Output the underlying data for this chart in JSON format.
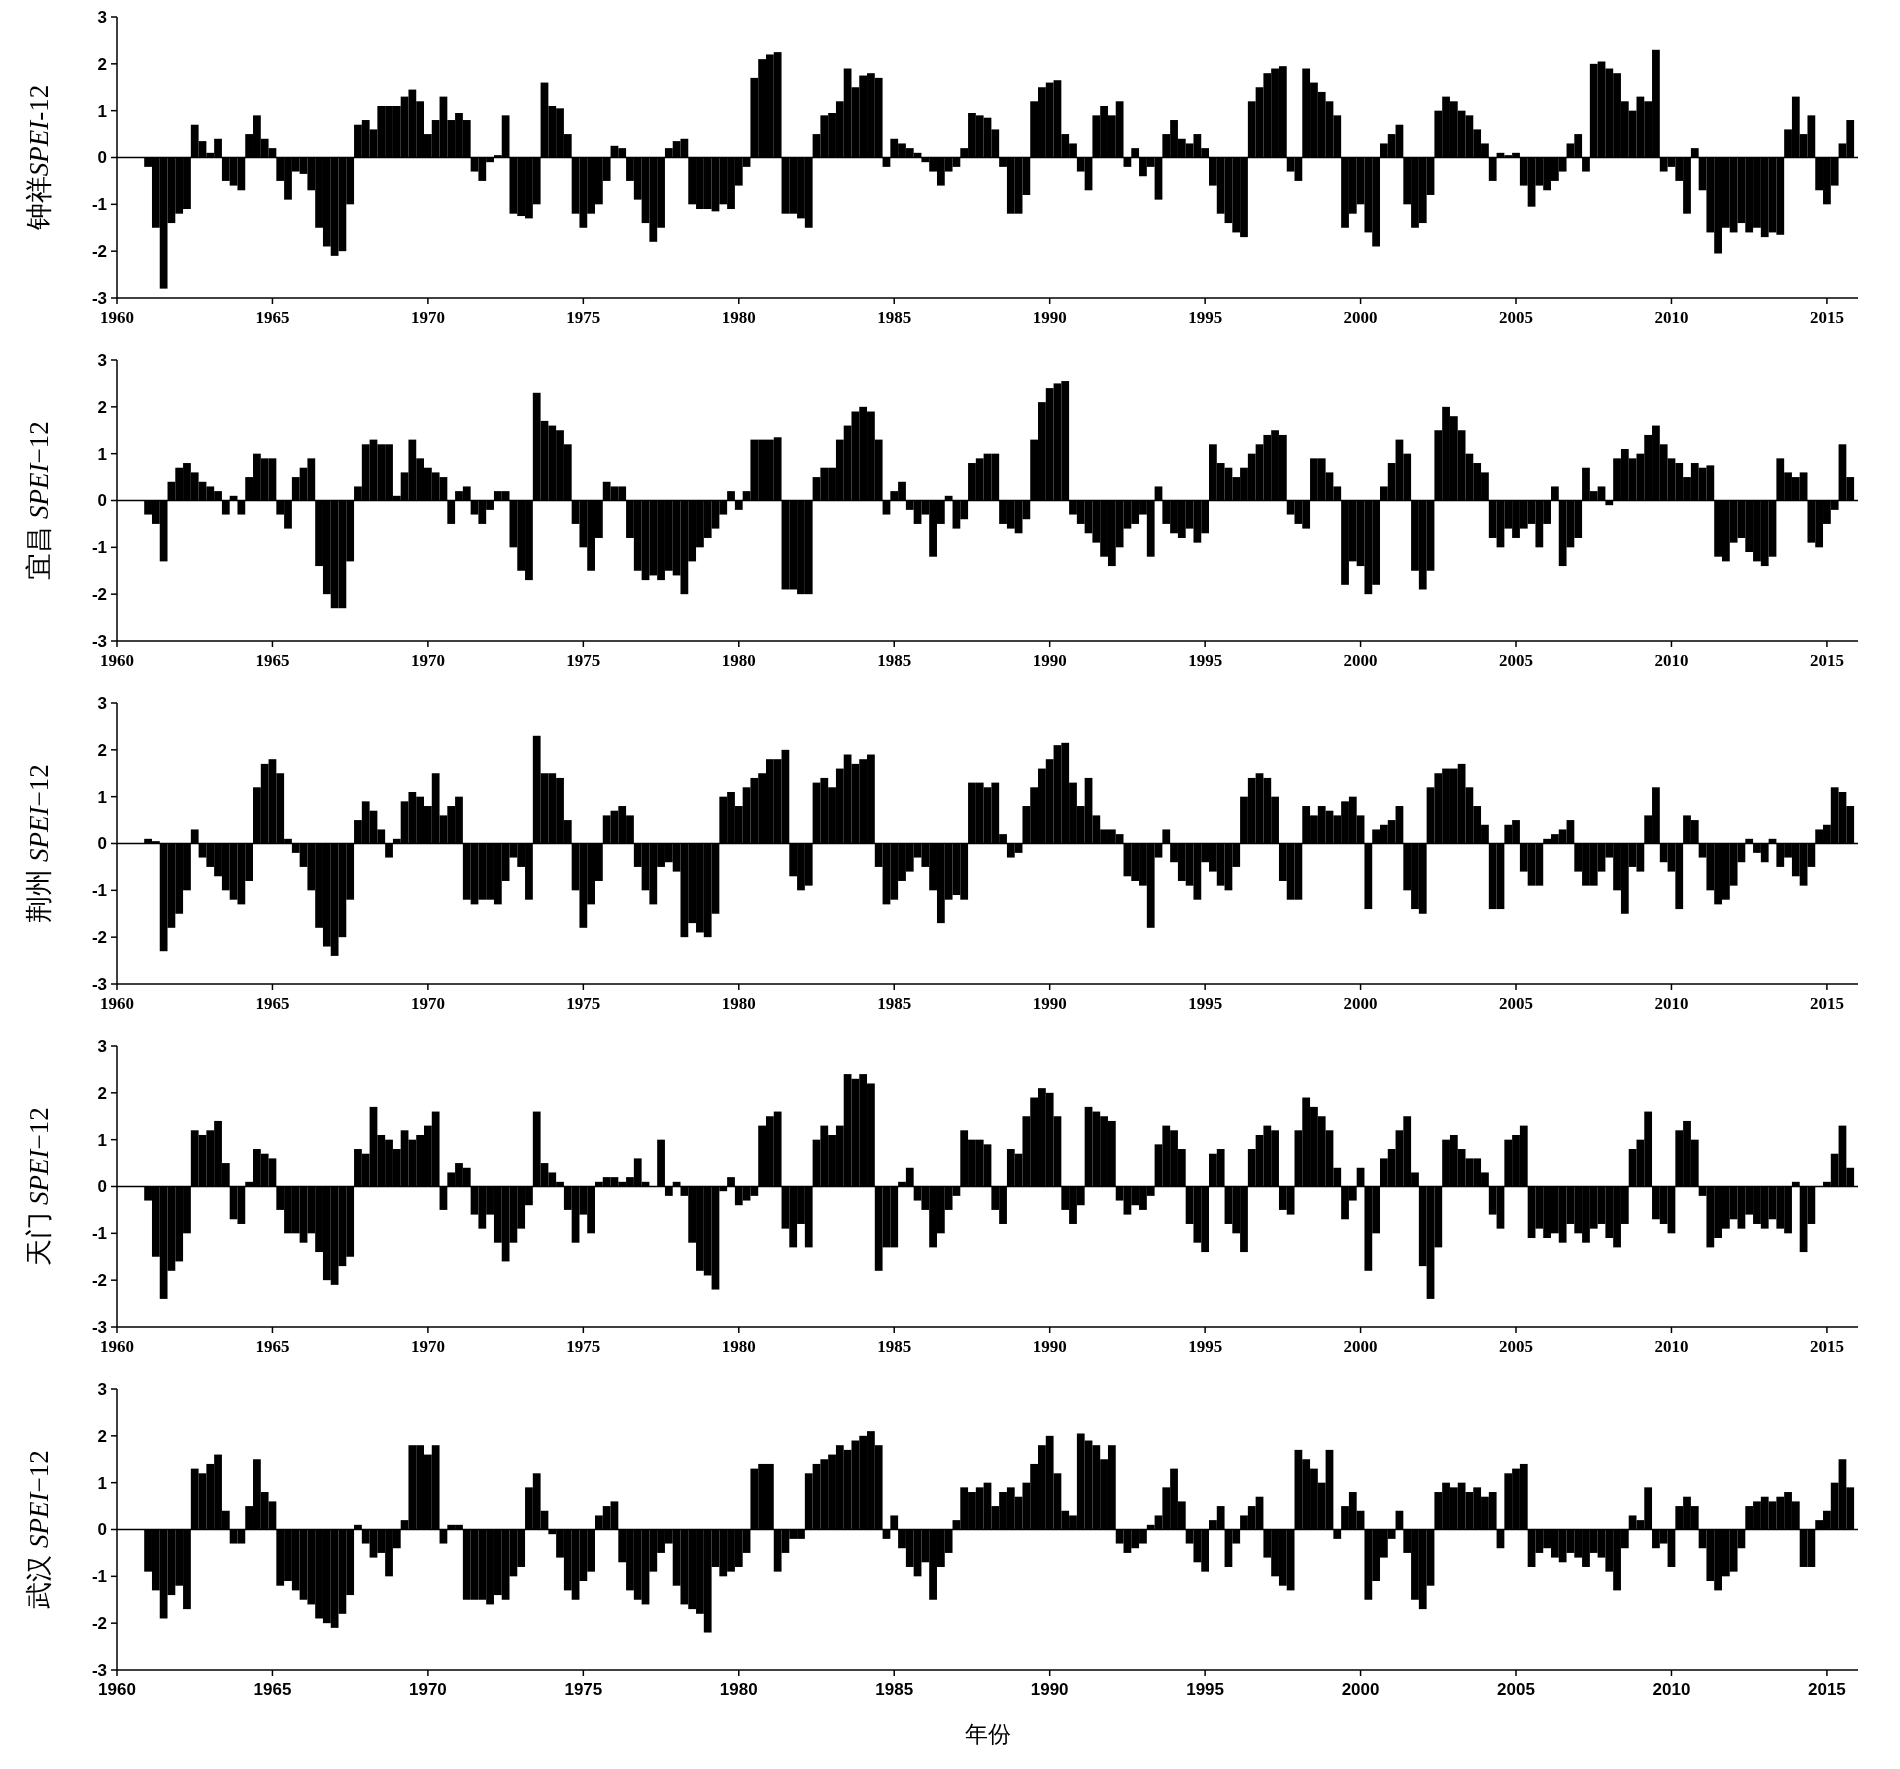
{
  "chart_data": [
    {
      "type": "bar",
      "ylabel": "钟祥SPEI-12",
      "color": "#000000",
      "xlim": [
        1960,
        2016
      ],
      "xticks": [
        1960,
        1965,
        1970,
        1975,
        1980,
        1985,
        1990,
        1995,
        2000,
        2005,
        2010,
        2015
      ],
      "ylim": [
        -3,
        3
      ],
      "yticks": [
        -3,
        -2,
        -1,
        0,
        1,
        2,
        3
      ],
      "x": [
        1961,
        1961.25,
        1961.5,
        1961.75,
        1962,
        1962.25,
        1962.5,
        1962.75,
        1963,
        1963.25,
        1963.5,
        1963.75,
        1964,
        1964.25,
        1964.5,
        1964.75,
        1965,
        1965.25,
        1965.5,
        1965.75,
        1966,
        1966.25,
        1966.5,
        1966.75,
        1967,
        1967.25,
        1967.5,
        1967.75,
        1968,
        1968.25,
        1968.5,
        1968.75,
        1969,
        1969.25,
        1969.5,
        1969.75,
        1970,
        1970.25,
        1970.5,
        1970.75,
        1971,
        1971.25,
        1971.5,
        1971.75,
        1972,
        1972.25,
        1972.5,
        1972.75,
        1973,
        1973.25,
        1973.5,
        1973.75,
        1974,
        1974.25,
        1974.5,
        1974.75,
        1975,
        1975.25,
        1975.5,
        1975.75,
        1976,
        1976.25,
        1976.5,
        1976.75,
        1977,
        1977.25,
        1977.5,
        1977.75,
        1978,
        1978.25,
        1978.5,
        1978.75,
        1979,
        1979.25,
        1979.5,
        1979.75,
        1980,
        1980.25,
        1980.5,
        1980.75,
        1981,
        1981.25,
        1981.5,
        1981.75,
        1982,
        1982.25,
        1982.5,
        1982.75,
        1983,
        1983.25,
        1983.5,
        1983.75,
        1984,
        1984.25,
        1984.5,
        1984.75,
        1985,
        1985.25,
        1985.5,
        1985.75,
        1986,
        1986.25,
        1986.5,
        1986.75,
        1987,
        1987.25,
        1987.5,
        1987.75,
        1988,
        1988.25,
        1988.5,
        1988.75,
        1989,
        1989.25,
        1989.5,
        1989.75,
        1990,
        1990.25,
        1990.5,
        1990.75,
        1991,
        1991.25,
        1991.5,
        1991.75,
        1992,
        1992.25,
        1992.5,
        1992.75,
        1993,
        1993.25,
        1993.5,
        1993.75,
        1994,
        1994.25,
        1994.5,
        1994.75,
        1995,
        1995.25,
        1995.5,
        1995.75,
        1996,
        1996.25,
        1996.5,
        1996.75,
        1997,
        1997.25,
        1997.5,
        1997.75,
        1998,
        1998.25,
        1998.5,
        1998.75,
        1999,
        1999.25,
        1999.5,
        1999.75,
        2000,
        2000.25,
        2000.5,
        2000.75,
        2001,
        2001.25,
        2001.5,
        2001.75,
        2002,
        2002.25,
        2002.5,
        2002.75,
        2003,
        2003.25,
        2003.5,
        2003.75,
        2004,
        2004.25,
        2004.5,
        2004.75,
        2005,
        2005.25,
        2005.5,
        2005.75,
        2006,
        2006.25,
        2006.5,
        2006.75,
        2007,
        2007.25,
        2007.5,
        2007.75,
        2008,
        2008.25,
        2008.5,
        2008.75,
        2009,
        2009.25,
        2009.5,
        2009.75,
        2010,
        2010.25,
        2010.5,
        2010.75,
        2011,
        2011.25,
        2011.5,
        2011.75,
        2012,
        2012.25,
        2012.5,
        2012.75,
        2013,
        2013.25,
        2013.5,
        2013.75,
        2014,
        2014.25,
        2014.5,
        2014.75,
        2015,
        2015.25,
        2015.5,
        2015.75
      ],
      "values": [
        -0.2,
        -1.5,
        -2.8,
        -1.4,
        -1.2,
        -1.1,
        0.7,
        0.35,
        0.1,
        0.4,
        -0.5,
        -0.6,
        -0.7,
        0.5,
        0.9,
        0.4,
        0.2,
        -0.5,
        -0.9,
        -0.3,
        -0.35,
        -0.7,
        -1.5,
        -1.9,
        -2.1,
        -2,
        -1,
        0.7,
        0.8,
        0.6,
        1.1,
        1.1,
        1.1,
        1.3,
        1.45,
        1.2,
        0.5,
        0.8,
        1.3,
        0.8,
        0.95,
        0.8,
        -0.3,
        -0.5,
        -0.1,
        0.05,
        0.9,
        -1.2,
        -1.25,
        -1.3,
        -1,
        1.6,
        1.1,
        1.05,
        0.5,
        -1.2,
        -1.5,
        -1.2,
        -1,
        -0.5,
        0.25,
        0.2,
        -0.5,
        -0.9,
        -1.4,
        -1.8,
        -1.5,
        0.2,
        0.35,
        0.4,
        -1,
        -1.1,
        -1.1,
        -1.15,
        -1,
        -1.1,
        -0.6,
        -0.2,
        1.7,
        2.1,
        2.2,
        2.25,
        -1.2,
        -1.2,
        -1.3,
        -1.5,
        0.5,
        0.9,
        0.95,
        1.2,
        1.9,
        1.5,
        1.75,
        1.8,
        1.7,
        -0.2,
        0.4,
        0.3,
        0.2,
        0.1,
        -0.1,
        -0.3,
        -0.6,
        -0.3,
        -0.2,
        0.2,
        0.95,
        0.9,
        0.85,
        0.6,
        -0.2,
        -1.2,
        -1.2,
        -0.8,
        1.2,
        1.5,
        1.6,
        1.65,
        0.5,
        0.3,
        -0.3,
        -0.7,
        0.9,
        1.1,
        0.9,
        1.2,
        -0.2,
        0.2,
        -0.4,
        -0.2,
        -0.9,
        0.5,
        0.8,
        0.4,
        0.3,
        0.5,
        0.2,
        -0.6,
        -1.2,
        -1.4,
        -1.6,
        -1.7,
        1.2,
        1.5,
        1.8,
        1.9,
        1.95,
        -0.3,
        -0.5,
        1.9,
        1.6,
        1.4,
        1.2,
        0.9,
        -1.5,
        -1.2,
        -1,
        -1.6,
        -1.9,
        0.3,
        0.5,
        0.7,
        -1,
        -1.5,
        -1.4,
        -0.8,
        1,
        1.3,
        1.2,
        1,
        0.9,
        0.6,
        0.3,
        -0.5,
        0.1,
        0.05,
        0.1,
        -0.6,
        -1.05,
        -0.6,
        -0.7,
        -0.5,
        -0.3,
        0.3,
        0.5,
        -0.3,
        2,
        2.05,
        1.9,
        1.8,
        1.2,
        1,
        1.3,
        1.2,
        2.3,
        -0.3,
        -0.2,
        -0.5,
        -1.2,
        0.2,
        -0.7,
        -1.6,
        -2.05,
        -1.5,
        -1.6,
        -1.4,
        -1.6,
        -1.5,
        -1.7,
        -1.6,
        -1.65,
        0.6,
        1.3,
        0.5,
        0.9,
        -0.7,
        -1,
        -0.6,
        0.3,
        0.8
      ]
    },
    {
      "type": "bar",
      "ylabel": "宜昌 SPEI−12",
      "color": "#000000",
      "xlim": [
        1960,
        2016
      ],
      "xticks": [
        1960,
        1965,
        1970,
        1975,
        1980,
        1985,
        1990,
        1995,
        2000,
        2005,
        2010,
        2015
      ],
      "ylim": [
        -3,
        3
      ],
      "yticks": [
        -3,
        -2,
        -1,
        0,
        1,
        2,
        3
      ],
      "x": [
        1961,
        1961.25,
        1961.5,
        1961.75,
        1962,
        1962.25,
        1962.5,
        1962.75,
        1963,
        1963.25,
        1963.5,
        1963.75,
        1964,
        1964.25,
        1964.5,
        1964.75,
        1965,
        1965.25,
        1965.5,
        1965.75,
        1966,
        1966.25,
        1966.5,
        1966.75,
        1967,
        1967.25,
        1967.5,
        1967.75,
        1968,
        1968.25,
        1968.5,
        1968.75,
        1969,
        1969.25,
        1969.5,
        1969.75,
        1970,
        1970.25,
        1970.5,
        1970.75,
        1971,
        1971.25,
        1971.5,
        1971.75,
        1972,
        1972.25,
        1972.5,
        1972.75,
        1973,
        1973.25,
        1973.5,
        1973.75,
        1974,
        1974.25,
        1974.5,
        1974.75,
        1975,
        1975.25,
        1975.5,
        1975.75,
        1976,
        1976.25,
        1976.5,
        1976.75,
        1977,
        1977.25,
        1977.5,
        1977.75,
        1978,
        1978.25,
        1978.5,
        1978.75,
        1979,
        1979.25,
        1979.5,
        1979.75,
        1980,
        1980.25,
        1980.5,
        1980.75,
        1981,
        1981.25,
        1981.5,
        1981.75,
        1982,
        1982.25,
        1982.5,
        1982.75,
        1983,
        1983.25,
        1983.5,
        1983.75,
        1984,
        1984.25,
        1984.5,
        1984.75,
        1985,
        1985.25,
        1985.5,
        1985.75,
        1986,
        1986.25,
        1986.5,
        1986.75,
        1987,
        1987.25,
        1987.5,
        1987.75,
        1988,
        1988.25,
        1988.5,
        1988.75,
        1989,
        1989.25,
        1989.5,
        1989.75,
        1990,
        1990.25,
        1990.5,
        1990.75,
        1991,
        1991.25,
        1991.5,
        1991.75,
        1992,
        1992.25,
        1992.5,
        1992.75,
        1993,
        1993.25,
        1993.5,
        1993.75,
        1994,
        1994.25,
        1994.5,
        1994.75,
        1995,
        1995.25,
        1995.5,
        1995.75,
        1996,
        1996.25,
        1996.5,
        1996.75,
        1997,
        1997.25,
        1997.5,
        1997.75,
        1998,
        1998.25,
        1998.5,
        1998.75,
        1999,
        1999.25,
        1999.5,
        1999.75,
        2000,
        2000.25,
        2000.5,
        2000.75,
        2001,
        2001.25,
        2001.5,
        2001.75,
        2002,
        2002.25,
        2002.5,
        2002.75,
        2003,
        2003.25,
        2003.5,
        2003.75,
        2004,
        2004.25,
        2004.5,
        2004.75,
        2005,
        2005.25,
        2005.5,
        2005.75,
        2006,
        2006.25,
        2006.5,
        2006.75,
        2007,
        2007.25,
        2007.5,
        2007.75,
        2008,
        2008.25,
        2008.5,
        2008.75,
        2009,
        2009.25,
        2009.5,
        2009.75,
        2010,
        2010.25,
        2010.5,
        2010.75,
        2011,
        2011.25,
        2011.5,
        2011.75,
        2012,
        2012.25,
        2012.5,
        2012.75,
        2013,
        2013.25,
        2013.5,
        2013.75,
        2014,
        2014.25,
        2014.5,
        2014.75,
        2015,
        2015.25,
        2015.5,
        2015.75
      ],
      "values": [
        -0.3,
        -0.5,
        -1.3,
        0.4,
        0.7,
        0.8,
        0.6,
        0.4,
        0.3,
        0.2,
        -0.3,
        0.1,
        -0.3,
        0.5,
        1,
        0.9,
        0.9,
        -0.3,
        -0.6,
        0.5,
        0.7,
        0.9,
        -1.4,
        -2,
        -2.3,
        -2.3,
        -1.3,
        0.3,
        1.2,
        1.3,
        1.2,
        1.2,
        0.1,
        0.6,
        1.3,
        0.9,
        0.7,
        0.6,
        0.5,
        -0.5,
        0.2,
        0.3,
        -0.3,
        -0.5,
        -0.2,
        0.2,
        0.2,
        -1,
        -1.5,
        -1.7,
        2.3,
        1.7,
        1.6,
        1.5,
        1.2,
        -0.5,
        -1,
        -1.5,
        -0.8,
        0.4,
        0.3,
        0.3,
        -0.8,
        -1.5,
        -1.7,
        -1.6,
        -1.7,
        -1.5,
        -1.6,
        -2,
        -1.3,
        -1,
        -0.8,
        -0.6,
        -0.3,
        0.2,
        -0.2,
        0.2,
        1.3,
        1.3,
        1.3,
        1.35,
        -1.9,
        -1.9,
        -2,
        -2,
        0.5,
        0.7,
        0.7,
        1.3,
        1.6,
        1.9,
        2,
        1.9,
        1.3,
        -0.3,
        0.2,
        0.4,
        -0.2,
        -0.5,
        -0.3,
        -1.2,
        -0.5,
        0.1,
        -0.6,
        -0.4,
        0.8,
        0.9,
        1,
        1,
        -0.5,
        -0.6,
        -0.7,
        -0.4,
        1.3,
        2.1,
        2.4,
        2.5,
        2.55,
        -0.3,
        -0.5,
        -0.7,
        -0.9,
        -1.2,
        -1.4,
        -1,
        -0.6,
        -0.5,
        -0.3,
        -1.2,
        0.3,
        -0.5,
        -0.7,
        -0.8,
        -0.6,
        -0.9,
        -0.7,
        1.2,
        0.8,
        0.7,
        0.5,
        0.7,
        1,
        1.2,
        1.4,
        1.5,
        1.4,
        -0.3,
        -0.5,
        -0.6,
        0.9,
        0.9,
        0.6,
        0.3,
        -1.8,
        -1.3,
        -1.4,
        -2,
        -1.8,
        0.3,
        0.8,
        1.3,
        1,
        -1.5,
        -1.9,
        -1.5,
        1.5,
        2,
        1.8,
        1.5,
        1,
        0.8,
        0.6,
        -0.8,
        -1,
        -0.6,
        -0.8,
        -0.6,
        -0.5,
        -1,
        -0.5,
        0.3,
        -1.4,
        -1,
        -0.8,
        0.7,
        0.2,
        0.3,
        -0.1,
        0.9,
        1.1,
        0.9,
        1,
        1.4,
        1.6,
        1.2,
        0.9,
        0.8,
        0.5,
        0.8,
        0.7,
        0.75,
        -1.2,
        -1.3,
        -0.9,
        -0.8,
        -1.1,
        -1.3,
        -1.4,
        -1.2,
        0.9,
        0.6,
        0.5,
        0.6,
        -0.9,
        -1,
        -0.5,
        -0.2,
        1.2,
        0.5
      ]
    },
    {
      "type": "bar",
      "ylabel": "荆州 SPEI−12",
      "color": "#000000",
      "xlim": [
        1960,
        2016
      ],
      "xticks": [
        1960,
        1965,
        1970,
        1975,
        1980,
        1985,
        1990,
        1995,
        2000,
        2005,
        2010,
        2015
      ],
      "ylim": [
        -3,
        3
      ],
      "yticks": [
        -3,
        -2,
        -1,
        0,
        1,
        2,
        3
      ],
      "x": [
        1961,
        1961.25,
        1961.5,
        1961.75,
        1962,
        1962.25,
        1962.5,
        1962.75,
        1963,
        1963.25,
        1963.5,
        1963.75,
        1964,
        1964.25,
        1964.5,
        1964.75,
        1965,
        1965.25,
        1965.5,
        1965.75,
        1966,
        1966.25,
        1966.5,
        1966.75,
        1967,
        1967.25,
        1967.5,
        1967.75,
        1968,
        1968.25,
        1968.5,
        1968.75,
        1969,
        1969.25,
        1969.5,
        1969.75,
        1970,
        1970.25,
        1970.5,
        1970.75,
        1971,
        1971.25,
        1971.5,
        1971.75,
        1972,
        1972.25,
        1972.5,
        1972.75,
        1973,
        1973.25,
        1973.5,
        1973.75,
        1974,
        1974.25,
        1974.5,
        1974.75,
        1975,
        1975.25,
        1975.5,
        1975.75,
        1976,
        1976.25,
        1976.5,
        1976.75,
        1977,
        1977.25,
        1977.5,
        1977.75,
        1978,
        1978.25,
        1978.5,
        1978.75,
        1979,
        1979.25,
        1979.5,
        1979.75,
        1980,
        1980.25,
        1980.5,
        1980.75,
        1981,
        1981.25,
        1981.5,
        1981.75,
        1982,
        1982.25,
        1982.5,
        1982.75,
        1983,
        1983.25,
        1983.5,
        1983.75,
        1984,
        1984.25,
        1984.5,
        1984.75,
        1985,
        1985.25,
        1985.5,
        1985.75,
        1986,
        1986.25,
        1986.5,
        1986.75,
        1987,
        1987.25,
        1987.5,
        1987.75,
        1988,
        1988.25,
        1988.5,
        1988.75,
        1989,
        1989.25,
        1989.5,
        1989.75,
        1990,
        1990.25,
        1990.5,
        1990.75,
        1991,
        1991.25,
        1991.5,
        1991.75,
        1992,
        1992.25,
        1992.5,
        1992.75,
        1993,
        1993.25,
        1993.5,
        1993.75,
        1994,
        1994.25,
        1994.5,
        1994.75,
        1995,
        1995.25,
        1995.5,
        1995.75,
        1996,
        1996.25,
        1996.5,
        1996.75,
        1997,
        1997.25,
        1997.5,
        1997.75,
        1998,
        1998.25,
        1998.5,
        1998.75,
        1999,
        1999.25,
        1999.5,
        1999.75,
        2000,
        2000.25,
        2000.5,
        2000.75,
        2001,
        2001.25,
        2001.5,
        2001.75,
        2002,
        2002.25,
        2002.5,
        2002.75,
        2003,
        2003.25,
        2003.5,
        2003.75,
        2004,
        2004.25,
        2004.5,
        2004.75,
        2005,
        2005.25,
        2005.5,
        2005.75,
        2006,
        2006.25,
        2006.5,
        2006.75,
        2007,
        2007.25,
        2007.5,
        2007.75,
        2008,
        2008.25,
        2008.5,
        2008.75,
        2009,
        2009.25,
        2009.5,
        2009.75,
        2010,
        2010.25,
        2010.5,
        2010.75,
        2011,
        2011.25,
        2011.5,
        2011.75,
        2012,
        2012.25,
        2012.5,
        2012.75,
        2013,
        2013.25,
        2013.5,
        2013.75,
        2014,
        2014.25,
        2014.5,
        2014.75,
        2015,
        2015.25,
        2015.5,
        2015.75
      ],
      "values": [
        0.1,
        0.05,
        -2.3,
        -1.8,
        -1.5,
        -1,
        0.3,
        -0.3,
        -0.5,
        -0.7,
        -1,
        -1.2,
        -1.3,
        -0.8,
        1.2,
        1.7,
        1.8,
        1.5,
        0.1,
        -0.2,
        -0.5,
        -1,
        -1.8,
        -2.2,
        -2.4,
        -2,
        -1.2,
        0.5,
        0.9,
        0.7,
        0.3,
        -0.3,
        0.1,
        0.9,
        1.1,
        1,
        0.8,
        1.5,
        0.6,
        0.8,
        1,
        -1.2,
        -1.3,
        -1.2,
        -1.2,
        -1.3,
        -0.8,
        -0.3,
        -0.5,
        -1.2,
        2.3,
        1.5,
        1.5,
        1.4,
        0.5,
        -1,
        -1.8,
        -1.3,
        -0.8,
        0.6,
        0.7,
        0.8,
        0.6,
        -0.5,
        -1,
        -1.3,
        -0.5,
        -0.4,
        -0.6,
        -2,
        -1.7,
        -1.9,
        -2,
        -1.5,
        1,
        1.1,
        0.8,
        1.2,
        1.4,
        1.5,
        1.8,
        1.8,
        2,
        -0.7,
        -1,
        -0.9,
        1.3,
        1.4,
        1.2,
        1.6,
        1.9,
        1.7,
        1.8,
        1.9,
        -0.5,
        -1.3,
        -1.2,
        -0.8,
        -0.6,
        -0.3,
        -0.5,
        -1,
        -1.7,
        -1.2,
        -1.1,
        -1.2,
        1.3,
        1.3,
        1.2,
        1.3,
        0.2,
        -0.3,
        -0.2,
        0.8,
        1.2,
        1.6,
        1.8,
        2.1,
        2.15,
        1.3,
        0.8,
        1.4,
        0.6,
        0.3,
        0.3,
        0.2,
        -0.7,
        -0.8,
        -0.9,
        -1.8,
        -0.3,
        0.3,
        -0.4,
        -0.8,
        -0.9,
        -1.2,
        -0.4,
        -0.6,
        -0.9,
        -1,
        -0.5,
        1,
        1.4,
        1.5,
        1.4,
        1,
        -0.8,
        -1.2,
        -1.2,
        0.8,
        0.6,
        0.8,
        0.7,
        0.6,
        0.9,
        1,
        0.6,
        -1.4,
        0.3,
        0.4,
        0.5,
        0.8,
        -1,
        -1.4,
        -1.5,
        1.2,
        1.5,
        1.6,
        1.6,
        1.7,
        1.2,
        0.8,
        0.4,
        -1.4,
        -1.4,
        0.4,
        0.5,
        -0.6,
        -0.9,
        -0.9,
        0.1,
        0.2,
        0.3,
        0.5,
        -0.6,
        -0.9,
        -0.9,
        -0.6,
        -0.3,
        -1,
        -1.5,
        -0.5,
        -0.6,
        0.6,
        1.2,
        -0.4,
        -0.6,
        -1.4,
        0.6,
        0.5,
        -0.3,
        -1,
        -1.3,
        -1.2,
        -0.9,
        -0.4,
        0.1,
        -0.2,
        -0.4,
        0.1,
        -0.5,
        -0.3,
        -0.7,
        -0.9,
        -0.5,
        0.3,
        0.4,
        1.2,
        1.1,
        0.8
      ]
    },
    {
      "type": "bar",
      "ylabel": "天门 SPEI−12",
      "color": "#000000",
      "xlim": [
        1960,
        2016
      ],
      "xticks": [
        1960,
        1965,
        1970,
        1975,
        1980,
        1985,
        1990,
        1995,
        2000,
        2005,
        2010,
        2015
      ],
      "ylim": [
        -3,
        3
      ],
      "yticks": [
        -3,
        -2,
        -1,
        0,
        1,
        2,
        3
      ],
      "x": [
        1961,
        1961.25,
        1961.5,
        1961.75,
        1962,
        1962.25,
        1962.5,
        1962.75,
        1963,
        1963.25,
        1963.5,
        1963.75,
        1964,
        1964.25,
        1964.5,
        1964.75,
        1965,
        1965.25,
        1965.5,
        1965.75,
        1966,
        1966.25,
        1966.5,
        1966.75,
        1967,
        1967.25,
        1967.5,
        1967.75,
        1968,
        1968.25,
        1968.5,
        1968.75,
        1969,
        1969.25,
        1969.5,
        1969.75,
        1970,
        1970.25,
        1970.5,
        1970.75,
        1971,
        1971.25,
        1971.5,
        1971.75,
        1972,
        1972.25,
        1972.5,
        1972.75,
        1973,
        1973.25,
        1973.5,
        1973.75,
        1974,
        1974.25,
        1974.5,
        1974.75,
        1975,
        1975.25,
        1975.5,
        1975.75,
        1976,
        1976.25,
        1976.5,
        1976.75,
        1977,
        1977.25,
        1977.5,
        1977.75,
        1978,
        1978.25,
        1978.5,
        1978.75,
        1979,
        1979.25,
        1979.5,
        1979.75,
        1980,
        1980.25,
        1980.5,
        1980.75,
        1981,
        1981.25,
        1981.5,
        1981.75,
        1982,
        1982.25,
        1982.5,
        1982.75,
        1983,
        1983.25,
        1983.5,
        1983.75,
        1984,
        1984.25,
        1984.5,
        1984.75,
        1985,
        1985.25,
        1985.5,
        1985.75,
        1986,
        1986.25,
        1986.5,
        1986.75,
        1987,
        1987.25,
        1987.5,
        1987.75,
        1988,
        1988.25,
        1988.5,
        1988.75,
        1989,
        1989.25,
        1989.5,
        1989.75,
        1990,
        1990.25,
        1990.5,
        1990.75,
        1991,
        1991.25,
        1991.5,
        1991.75,
        1992,
        1992.25,
        1992.5,
        1992.75,
        1993,
        1993.25,
        1993.5,
        1993.75,
        1994,
        1994.25,
        1994.5,
        1994.75,
        1995,
        1995.25,
        1995.5,
        1995.75,
        1996,
        1996.25,
        1996.5,
        1996.75,
        1997,
        1997.25,
        1997.5,
        1997.75,
        1998,
        1998.25,
        1998.5,
        1998.75,
        1999,
        1999.25,
        1999.5,
        1999.75,
        2000,
        2000.25,
        2000.5,
        2000.75,
        2001,
        2001.25,
        2001.5,
        2001.75,
        2002,
        2002.25,
        2002.5,
        2002.75,
        2003,
        2003.25,
        2003.5,
        2003.75,
        2004,
        2004.25,
        2004.5,
        2004.75,
        2005,
        2005.25,
        2005.5,
        2005.75,
        2006,
        2006.25,
        2006.5,
        2006.75,
        2007,
        2007.25,
        2007.5,
        2007.75,
        2008,
        2008.25,
        2008.5,
        2008.75,
        2009,
        2009.25,
        2009.5,
        2009.75,
        2010,
        2010.25,
        2010.5,
        2010.75,
        2011,
        2011.25,
        2011.5,
        2011.75,
        2012,
        2012.25,
        2012.5,
        2012.75,
        2013,
        2013.25,
        2013.5,
        2013.75,
        2014,
        2014.25,
        2014.5,
        2014.75,
        2015,
        2015.25,
        2015.5,
        2015.75
      ],
      "values": [
        -0.3,
        -1.5,
        -2.4,
        -1.8,
        -1.6,
        -1,
        1.2,
        1.1,
        1.2,
        1.4,
        0.5,
        -0.7,
        -0.8,
        0.1,
        0.8,
        0.7,
        0.6,
        -0.5,
        -1,
        -1,
        -1.2,
        -1,
        -1.4,
        -2,
        -2.1,
        -1.7,
        -1.5,
        0.8,
        0.7,
        1.7,
        1.1,
        1,
        0.8,
        1.2,
        1,
        1.1,
        1.3,
        1.6,
        -0.5,
        0.3,
        0.5,
        0.4,
        -0.6,
        -0.9,
        -0.6,
        -1.2,
        -1.6,
        -1.2,
        -0.9,
        -0.4,
        1.6,
        0.5,
        0.3,
        0.1,
        -0.5,
        -1.2,
        -0.6,
        -1,
        0.1,
        0.2,
        0.2,
        0.1,
        0.2,
        0.6,
        0.1,
        0,
        1,
        -0.2,
        0.1,
        -0.2,
        -1.2,
        -1.8,
        -1.9,
        -2.2,
        -0.1,
        0.2,
        -0.4,
        -0.3,
        -0.2,
        1.3,
        1.5,
        1.6,
        -0.9,
        -1.3,
        -0.8,
        -1.3,
        1,
        1.3,
        1.1,
        1.3,
        2.4,
        2.3,
        2.4,
        2.2,
        -1.8,
        -1.3,
        -1.3,
        0.1,
        0.4,
        -0.3,
        -0.5,
        -1.3,
        -1,
        -0.5,
        -0.2,
        1.2,
        1,
        1,
        0.9,
        -0.5,
        -0.8,
        0.8,
        0.7,
        1.5,
        1.9,
        2.1,
        2,
        1.5,
        -0.5,
        -0.8,
        -0.4,
        1.7,
        1.6,
        1.5,
        1.4,
        -0.3,
        -0.6,
        -0.4,
        -0.5,
        -0.2,
        0.9,
        1.3,
        1.2,
        0.8,
        -0.8,
        -1.2,
        -1.4,
        0.7,
        0.8,
        -0.8,
        -1,
        -1.4,
        0.8,
        1.1,
        1.3,
        1.2,
        -0.5,
        -0.6,
        1.2,
        1.9,
        1.7,
        1.5,
        1.2,
        0.4,
        -0.7,
        -0.3,
        0.4,
        -1.8,
        -1,
        0.6,
        0.8,
        1.2,
        1.5,
        0.3,
        -1.7,
        -2.4,
        -1.3,
        1,
        1.1,
        0.8,
        0.6,
        0.6,
        0.3,
        -0.6,
        -0.9,
        1,
        1.1,
        1.3,
        -1.1,
        -0.9,
        -1.1,
        -1,
        -1.2,
        -0.8,
        -1,
        -1.2,
        -0.9,
        -0.8,
        -1.1,
        -1.3,
        -0.8,
        0.8,
        1,
        1.6,
        -0.7,
        -0.8,
        -1,
        1.2,
        1.4,
        1,
        -0.2,
        -1.3,
        -1.1,
        -0.9,
        -0.7,
        -0.9,
        -0.6,
        -0.8,
        -0.9,
        -0.7,
        -0.9,
        -1,
        0.1,
        -1.4,
        -0.8,
        0,
        0.1,
        0.7,
        1.3,
        0.4
      ]
    },
    {
      "type": "bar",
      "ylabel": "武汉 SPEI−12",
      "xlabel": "年份",
      "color": "#000000",
      "xlim": [
        1960,
        2016
      ],
      "xticks": [
        1960,
        1965,
        1970,
        1975,
        1980,
        1985,
        1990,
        1995,
        2000,
        2005,
        2010,
        2015
      ],
      "ylim": [
        -3,
        3
      ],
      "yticks": [
        -3,
        -2,
        -1,
        0,
        1,
        2,
        3
      ],
      "x": [
        1961,
        1961.25,
        1961.5,
        1961.75,
        1962,
        1962.25,
        1962.5,
        1962.75,
        1963,
        1963.25,
        1963.5,
        1963.75,
        1964,
        1964.25,
        1964.5,
        1964.75,
        1965,
        1965.25,
        1965.5,
        1965.75,
        1966,
        1966.25,
        1966.5,
        1966.75,
        1967,
        1967.25,
        1967.5,
        1967.75,
        1968,
        1968.25,
        1968.5,
        1968.75,
        1969,
        1969.25,
        1969.5,
        1969.75,
        1970,
        1970.25,
        1970.5,
        1970.75,
        1971,
        1971.25,
        1971.5,
        1971.75,
        1972,
        1972.25,
        1972.5,
        1972.75,
        1973,
        1973.25,
        1973.5,
        1973.75,
        1974,
        1974.25,
        1974.5,
        1974.75,
        1975,
        1975.25,
        1975.5,
        1975.75,
        1976,
        1976.25,
        1976.5,
        1976.75,
        1977,
        1977.25,
        1977.5,
        1977.75,
        1978,
        1978.25,
        1978.5,
        1978.75,
        1979,
        1979.25,
        1979.5,
        1979.75,
        1980,
        1980.25,
        1980.5,
        1980.75,
        1981,
        1981.25,
        1981.5,
        1981.75,
        1982,
        1982.25,
        1982.5,
        1982.75,
        1983,
        1983.25,
        1983.5,
        1983.75,
        1984,
        1984.25,
        1984.5,
        1984.75,
        1985,
        1985.25,
        1985.5,
        1985.75,
        1986,
        1986.25,
        1986.5,
        1986.75,
        1987,
        1987.25,
        1987.5,
        1987.75,
        1988,
        1988.25,
        1988.5,
        1988.75,
        1989,
        1989.25,
        1989.5,
        1989.75,
        1990,
        1990.25,
        1990.5,
        1990.75,
        1991,
        1991.25,
        1991.5,
        1991.75,
        1992,
        1992.25,
        1992.5,
        1992.75,
        1993,
        1993.25,
        1993.5,
        1993.75,
        1994,
        1994.25,
        1994.5,
        1994.75,
        1995,
        1995.25,
        1995.5,
        1995.75,
        1996,
        1996.25,
        1996.5,
        1996.75,
        1997,
        1997.25,
        1997.5,
        1997.75,
        1998,
        1998.25,
        1998.5,
        1998.75,
        1999,
        1999.25,
        1999.5,
        1999.75,
        2000,
        2000.25,
        2000.5,
        2000.75,
        2001,
        2001.25,
        2001.5,
        2001.75,
        2002,
        2002.25,
        2002.5,
        2002.75,
        2003,
        2003.25,
        2003.5,
        2003.75,
        2004,
        2004.25,
        2004.5,
        2004.75,
        2005,
        2005.25,
        2005.5,
        2005.75,
        2006,
        2006.25,
        2006.5,
        2006.75,
        2007,
        2007.25,
        2007.5,
        2007.75,
        2008,
        2008.25,
        2008.5,
        2008.75,
        2009,
        2009.25,
        2009.5,
        2009.75,
        2010,
        2010.25,
        2010.5,
        2010.75,
        2011,
        2011.25,
        2011.5,
        2011.75,
        2012,
        2012.25,
        2012.5,
        2012.75,
        2013,
        2013.25,
        2013.5,
        2013.75,
        2014,
        2014.25,
        2014.5,
        2014.75,
        2015,
        2015.25,
        2015.5,
        2015.75
      ],
      "values": [
        -0.9,
        -1.3,
        -1.9,
        -1.4,
        -1.2,
        -1.7,
        1.3,
        1.2,
        1.4,
        1.6,
        0.4,
        -0.3,
        -0.3,
        0.5,
        1.5,
        0.8,
        0.6,
        -1.2,
        -1.1,
        -1.3,
        -1.5,
        -1.6,
        -1.9,
        -2,
        -2.1,
        -1.8,
        -1.4,
        0.1,
        -0.3,
        -0.6,
        -0.5,
        -1,
        -0.4,
        0.2,
        1.8,
        1.8,
        1.6,
        1.8,
        -0.3,
        0.1,
        0.1,
        -1.5,
        -1.5,
        -1.5,
        -1.6,
        -1.4,
        -1.5,
        -1,
        -0.8,
        0.9,
        1.2,
        0.4,
        -0.1,
        -0.6,
        -1.3,
        -1.5,
        -1.1,
        -0.9,
        0.3,
        0.5,
        0.6,
        -0.7,
        -1.3,
        -1.5,
        -1.6,
        -0.9,
        -0.5,
        -0.3,
        -1.2,
        -1.6,
        -1.7,
        -1.8,
        -2.2,
        -0.8,
        -1,
        -0.9,
        -0.8,
        -0.5,
        1.3,
        1.4,
        1.4,
        -0.9,
        -0.5,
        -0.2,
        -0.2,
        1.2,
        1.4,
        1.5,
        1.6,
        1.8,
        1.7,
        1.9,
        2,
        2.1,
        1.8,
        -0.2,
        0.3,
        -0.4,
        -0.8,
        -1,
        -0.7,
        -1.5,
        -0.8,
        -0.5,
        0.2,
        0.9,
        0.8,
        0.9,
        1,
        0.5,
        0.8,
        0.9,
        0.7,
        1,
        1.4,
        1.8,
        2,
        1.2,
        0.4,
        0.3,
        2.05,
        1.9,
        1.8,
        1.5,
        1.8,
        -0.3,
        -0.5,
        -0.4,
        -0.3,
        0.1,
        0.3,
        0.9,
        1.3,
        0.6,
        -0.3,
        -0.7,
        -0.9,
        0.2,
        0.5,
        -0.8,
        -0.3,
        0.3,
        0.5,
        0.7,
        -0.6,
        -1,
        -1.2,
        -1.3,
        1.7,
        1.5,
        1.3,
        1,
        1.7,
        -0.2,
        0.5,
        0.8,
        0.4,
        -1.5,
        -1.1,
        -0.6,
        -0.2,
        0.4,
        -0.5,
        -1.5,
        -1.7,
        -1.2,
        0.8,
        1,
        0.9,
        1,
        0.8,
        0.9,
        0.7,
        0.8,
        -0.4,
        1.2,
        1.3,
        1.4,
        -0.8,
        -0.5,
        -0.4,
        -0.6,
        -0.7,
        -0.5,
        -0.6,
        -0.8,
        -0.5,
        -0.6,
        -0.9,
        -1.3,
        -0.4,
        0.3,
        0.2,
        0.9,
        -0.4,
        -0.3,
        -0.8,
        0.5,
        0.7,
        0.5,
        -0.4,
        -1.1,
        -1.3,
        -1,
        -0.9,
        -0.4,
        0.5,
        0.6,
        0.7,
        0.6,
        0.7,
        0.8,
        0.6,
        -0.8,
        -0.8,
        0.2,
        0.4,
        1,
        1.5,
        0.9
      ]
    }
  ]
}
